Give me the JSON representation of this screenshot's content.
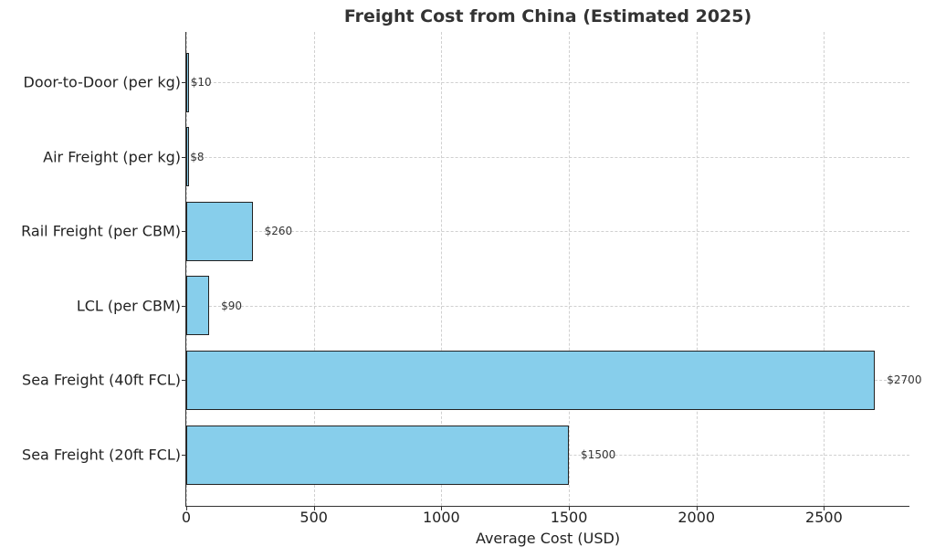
{
  "chart_data": {
    "type": "bar",
    "orientation": "horizontal",
    "title": "Freight Cost from China (Estimated 2025)",
    "xlabel": "Average Cost (USD)",
    "ylabel": "",
    "categories": [
      "Door-to-Door (per kg)",
      "Air Freight (per kg)",
      "Rail Freight (per CBM)",
      "LCL (per CBM)",
      "Sea Freight (40ft FCL)",
      "Sea Freight (20ft FCL)"
    ],
    "values": [
      10,
      8,
      260,
      90,
      2700,
      1500
    ],
    "data_labels": [
      "$10",
      "$8",
      "$260",
      "$90",
      "$2700",
      "$1500"
    ],
    "xlim": [
      0,
      2835
    ],
    "xticks": [
      0,
      500,
      1000,
      1500,
      2000,
      2500
    ],
    "xtick_labels": [
      "0",
      "500",
      "1000",
      "1500",
      "2000",
      "2500"
    ],
    "grid": true,
    "legend": null,
    "bar_color": "#87ceeb",
    "edge_color": "#222222"
  }
}
